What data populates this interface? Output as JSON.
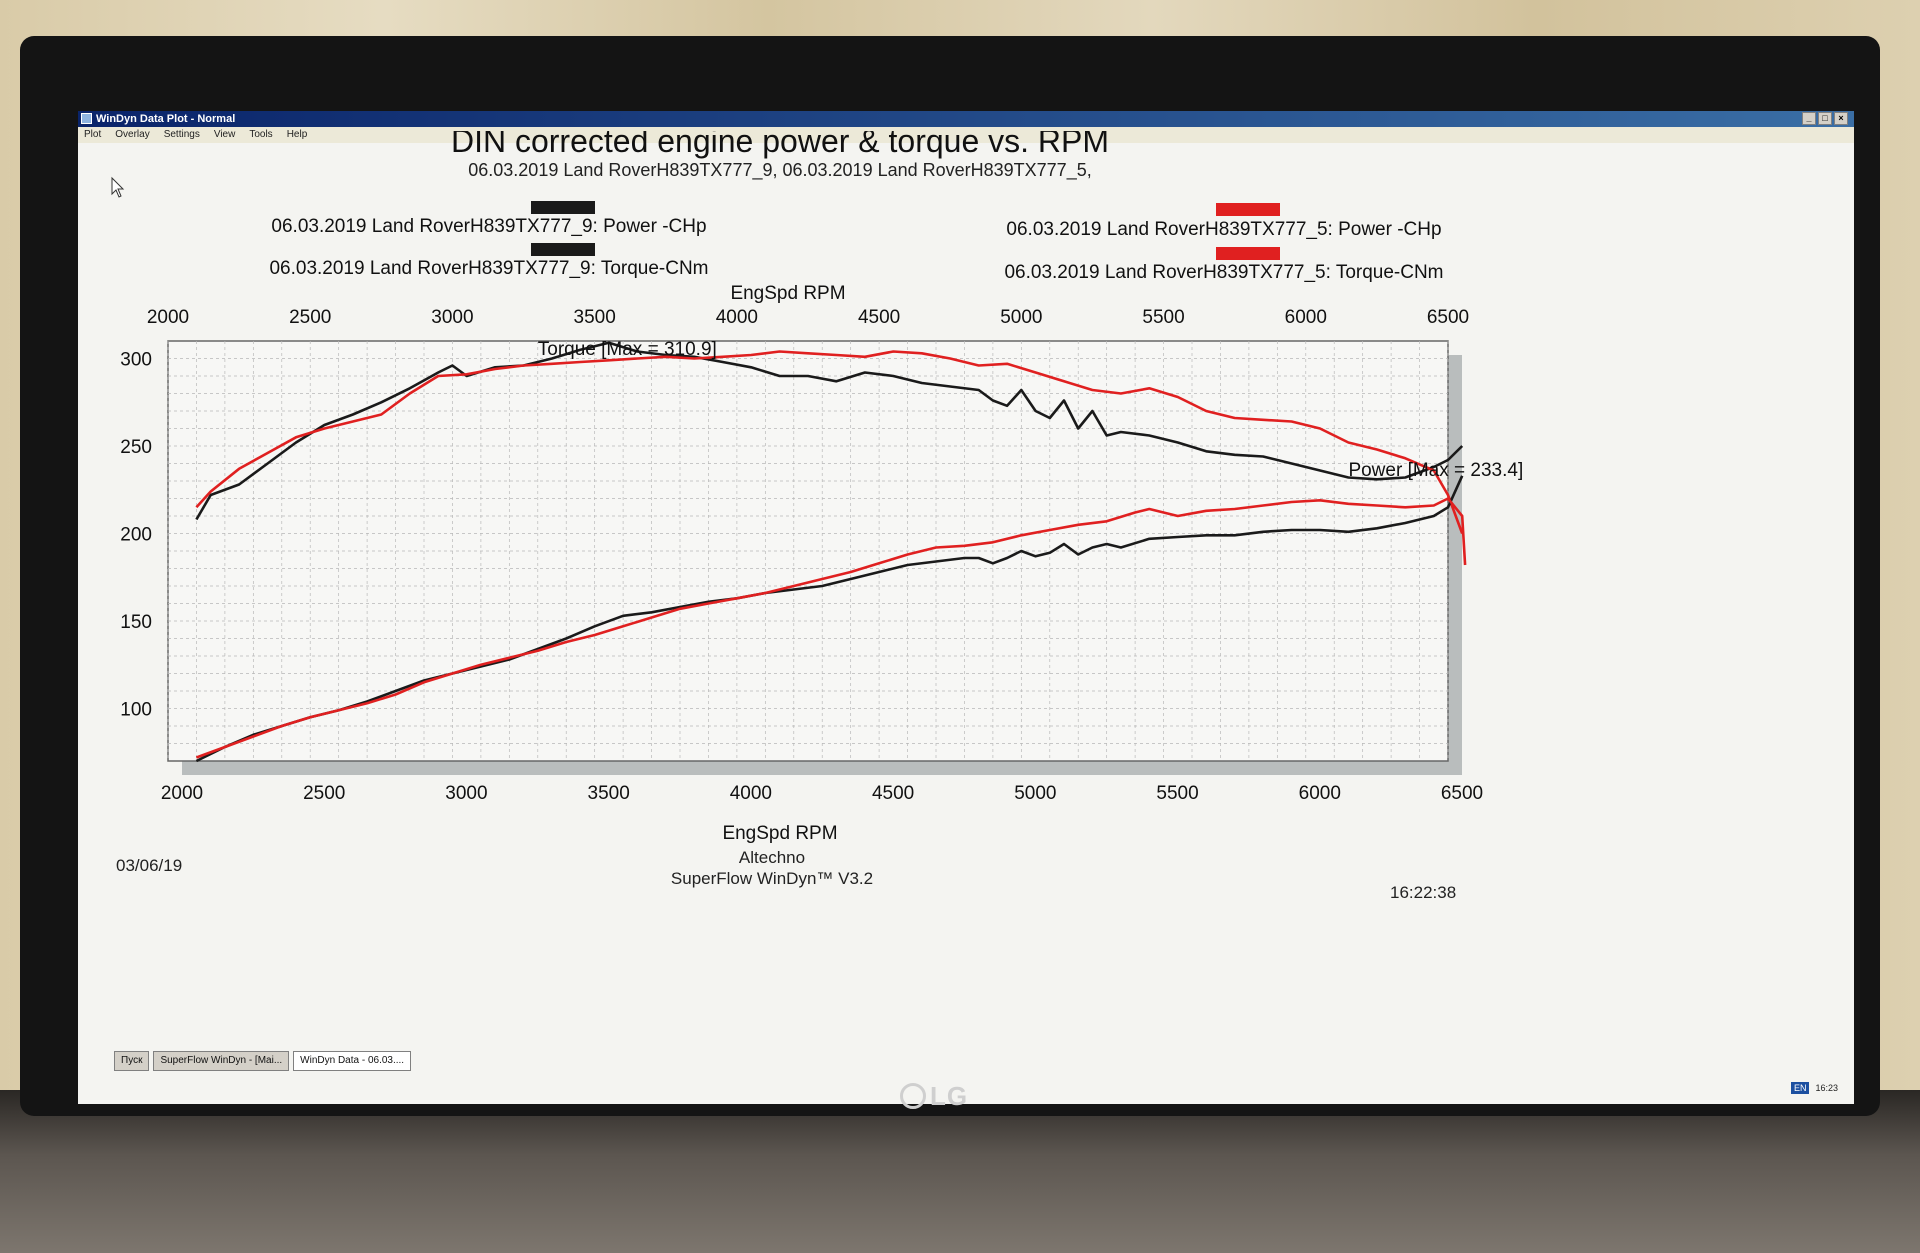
{
  "window": {
    "title": "WinDyn Data Plot - Normal",
    "buttons": [
      "_",
      "□",
      "×"
    ]
  },
  "menu": [
    "Plot",
    "Overlay",
    "Settings",
    "View",
    "Tools",
    "Help"
  ],
  "taskbar": {
    "items": [
      "Пуск",
      "SuperFlow WinDyn - [Mai...",
      "WinDyn Data - 06.03...."
    ],
    "lang": "EN",
    "tray_time": "16:23"
  },
  "monitor_brand": "LG",
  "colors": {
    "run9": "#1a1a1a",
    "run5": "#e02020",
    "grid": "#b8b8b8"
  },
  "footer": {
    "date": "03/06/19",
    "company": "Altechno",
    "software": "SuperFlow WinDyn™ V3.2",
    "time": "16:22:38"
  },
  "chart_data": {
    "type": "line",
    "title": "DIN corrected engine power & torque vs. RPM",
    "subtitle": "06.03.2019 Land RoverH839TX777_9, 06.03.2019 Land RoverH839TX777_5,",
    "xlabel": "EngSpd RPM",
    "xlim": [
      2000,
      6500
    ],
    "ylim": [
      70,
      310
    ],
    "x_ticks": [
      2000,
      2500,
      3000,
      3500,
      4000,
      4500,
      5000,
      5500,
      6000,
      6500
    ],
    "y_ticks": [
      100,
      150,
      200,
      250,
      300
    ],
    "grid": true,
    "legend_placement": "top",
    "legend": [
      {
        "label": "06.03.2019 Land RoverH839TX777_9: Power -CHp",
        "color": "#1a1a1a"
      },
      {
        "label": "06.03.2019 Land RoverH839TX777_5: Power -CHp",
        "color": "#e02020"
      },
      {
        "label": "06.03.2019 Land RoverH839TX777_9: Torque-CNm",
        "color": "#1a1a1a"
      },
      {
        "label": "06.03.2019 Land RoverH839TX777_5: Torque-CNm",
        "color": "#e02020"
      }
    ],
    "annotations": [
      {
        "text": "Torque [Max = 310.9]",
        "x": 3300,
        "y": 302
      },
      {
        "text": "Power [Max = 233.4]",
        "x": 6150,
        "y": 233
      }
    ],
    "series": [
      {
        "name": "06.03.2019 Land RoverH839TX777_9: Torque-CNm",
        "color": "#1a1a1a",
        "x": [
          2100,
          2150,
          2250,
          2350,
          2450,
          2550,
          2650,
          2750,
          2850,
          2950,
          3000,
          3050,
          3150,
          3250,
          3350,
          3450,
          3550,
          3650,
          3750,
          3850,
          3950,
          4050,
          4150,
          4250,
          4350,
          4450,
          4550,
          4650,
          4750,
          4850,
          4900,
          4950,
          5000,
          5050,
          5100,
          5150,
          5200,
          5250,
          5300,
          5350,
          5450,
          5550,
          5650,
          5750,
          5850,
          5950,
          6050,
          6150,
          6250,
          6350,
          6450,
          6500,
          6550
        ],
        "y": [
          208,
          222,
          228,
          240,
          252,
          262,
          268,
          275,
          283,
          292,
          296,
          290,
          295,
          296,
          300,
          305,
          309,
          304,
          302,
          301,
          298,
          295,
          290,
          290,
          287,
          292,
          290,
          286,
          284,
          282,
          276,
          273,
          282,
          270,
          266,
          276,
          260,
          270,
          256,
          258,
          256,
          252,
          247,
          245,
          244,
          240,
          236,
          232,
          231,
          232,
          238,
          242,
          250
        ]
      },
      {
        "name": "06.03.2019 Land RoverH839TX777_5: Torque-CNm",
        "color": "#e02020",
        "x": [
          2100,
          2150,
          2250,
          2350,
          2450,
          2550,
          2650,
          2750,
          2850,
          2950,
          3050,
          3150,
          3250,
          3350,
          3450,
          3550,
          3650,
          3750,
          3850,
          3950,
          4050,
          4150,
          4250,
          4350,
          4450,
          4550,
          4650,
          4750,
          4850,
          4950,
          5050,
          5150,
          5250,
          5350,
          5450,
          5550,
          5650,
          5750,
          5850,
          5950,
          6050,
          6150,
          6250,
          6350,
          6450,
          6500,
          6550
        ],
        "y": [
          215,
          224,
          237,
          246,
          255,
          260,
          264,
          268,
          280,
          290,
          291,
          294,
          296,
          297,
          298,
          299,
          300,
          301,
          300,
          301,
          302,
          304,
          303,
          302,
          301,
          304,
          303,
          300,
          296,
          297,
          292,
          287,
          282,
          280,
          283,
          278,
          270,
          266,
          265,
          264,
          260,
          252,
          248,
          243,
          236,
          222,
          200
        ]
      },
      {
        "name": "06.03.2019 Land RoverH839TX777_9: Power -CHp",
        "color": "#1a1a1a",
        "x": [
          2100,
          2200,
          2300,
          2400,
          2500,
          2600,
          2700,
          2800,
          2900,
          3000,
          3100,
          3200,
          3300,
          3400,
          3500,
          3600,
          3700,
          3800,
          3900,
          4000,
          4100,
          4200,
          4300,
          4400,
          4500,
          4600,
          4700,
          4800,
          4850,
          4900,
          4950,
          5000,
          5050,
          5100,
          5150,
          5200,
          5250,
          5300,
          5350,
          5450,
          5550,
          5650,
          5750,
          5850,
          5950,
          6050,
          6150,
          6250,
          6350,
          6450,
          6500,
          6550
        ],
        "y": [
          70,
          78,
          85,
          90,
          95,
          99,
          104,
          110,
          116,
          120,
          124,
          128,
          134,
          140,
          147,
          153,
          155,
          158,
          161,
          163,
          166,
          168,
          170,
          174,
          178,
          182,
          184,
          186,
          186,
          183,
          186,
          190,
          187,
          189,
          194,
          188,
          192,
          194,
          192,
          197,
          198,
          199,
          199,
          201,
          202,
          202,
          201,
          203,
          206,
          210,
          215,
          233
        ]
      },
      {
        "name": "06.03.2019 Land RoverH839TX777_5: Power -CHp",
        "color": "#e02020",
        "x": [
          2100,
          2200,
          2300,
          2400,
          2500,
          2600,
          2700,
          2800,
          2900,
          3000,
          3100,
          3200,
          3300,
          3400,
          3500,
          3600,
          3700,
          3800,
          3900,
          4000,
          4100,
          4200,
          4300,
          4400,
          4500,
          4600,
          4700,
          4800,
          4900,
          5000,
          5100,
          5200,
          5300,
          5400,
          5450,
          5500,
          5550,
          5650,
          5750,
          5850,
          5950,
          6050,
          6150,
          6250,
          6350,
          6450,
          6500,
          6550,
          6560
        ],
        "y": [
          72,
          78,
          84,
          90,
          95,
          99,
          103,
          108,
          115,
          120,
          125,
          129,
          133,
          138,
          142,
          147,
          152,
          157,
          160,
          163,
          166,
          170,
          174,
          178,
          183,
          188,
          192,
          193,
          195,
          199,
          202,
          205,
          207,
          212,
          214,
          212,
          210,
          213,
          214,
          216,
          218,
          219,
          217,
          216,
          215,
          216,
          220,
          210,
          182
        ]
      }
    ]
  }
}
